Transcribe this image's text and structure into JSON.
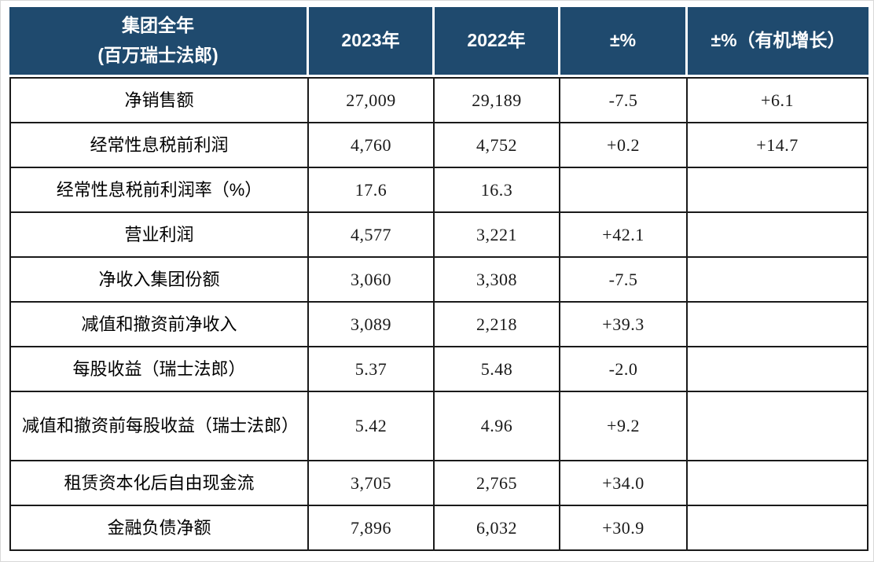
{
  "table": {
    "title_semantics": "group-full-year-results",
    "header": {
      "group_title_line1": "集团全年",
      "group_title_line2": "(百万瑞士法郎)",
      "col_2023": "2023年",
      "col_2022": "2022年",
      "col_pct": "±%",
      "col_pct_organic": "±%（有机增长）"
    },
    "rows": [
      {
        "label": "净销售额",
        "y2023": "27,009",
        "y2022": "29,189",
        "pct": "-7.5",
        "organic": "+6.1"
      },
      {
        "label": "经常性息税前利润",
        "y2023": "4,760",
        "y2022": "4,752",
        "pct": "+0.2",
        "organic": "+14.7"
      },
      {
        "label": "经常性息税前利润率（%）",
        "y2023": "17.6",
        "y2022": "16.3",
        "pct": "",
        "organic": ""
      },
      {
        "label": "营业利润",
        "y2023": "4,577",
        "y2022": "3,221",
        "pct": "+42.1",
        "organic": ""
      },
      {
        "label": "净收入集团份额",
        "y2023": "3,060",
        "y2022": "3,308",
        "pct": "-7.5",
        "organic": ""
      },
      {
        "label": "减值和撤资前净收入",
        "y2023": "3,089",
        "y2022": "2,218",
        "pct": "+39.3",
        "organic": ""
      },
      {
        "label": "每股收益（瑞士法郎）",
        "y2023": "5.37",
        "y2022": "5.48",
        "pct": "-2.0",
        "organic": ""
      },
      {
        "label": "减值和撤资前每股收益（瑞士法郎）",
        "y2023": "5.42",
        "y2022": "4.96",
        "pct": "+9.2",
        "organic": ""
      },
      {
        "label": "租赁资本化后自由现金流",
        "y2023": "3,705",
        "y2022": "2,765",
        "pct": "+34.0",
        "organic": ""
      },
      {
        "label": "金融负债净额",
        "y2023": "7,896",
        "y2022": "6,032",
        "pct": "+30.9",
        "organic": ""
      }
    ],
    "colors": {
      "header_bg": "#1f4a6e",
      "header_text": "#ffffff",
      "body_border": "#1a1a1a",
      "body_text": "#1a1a1a"
    }
  }
}
